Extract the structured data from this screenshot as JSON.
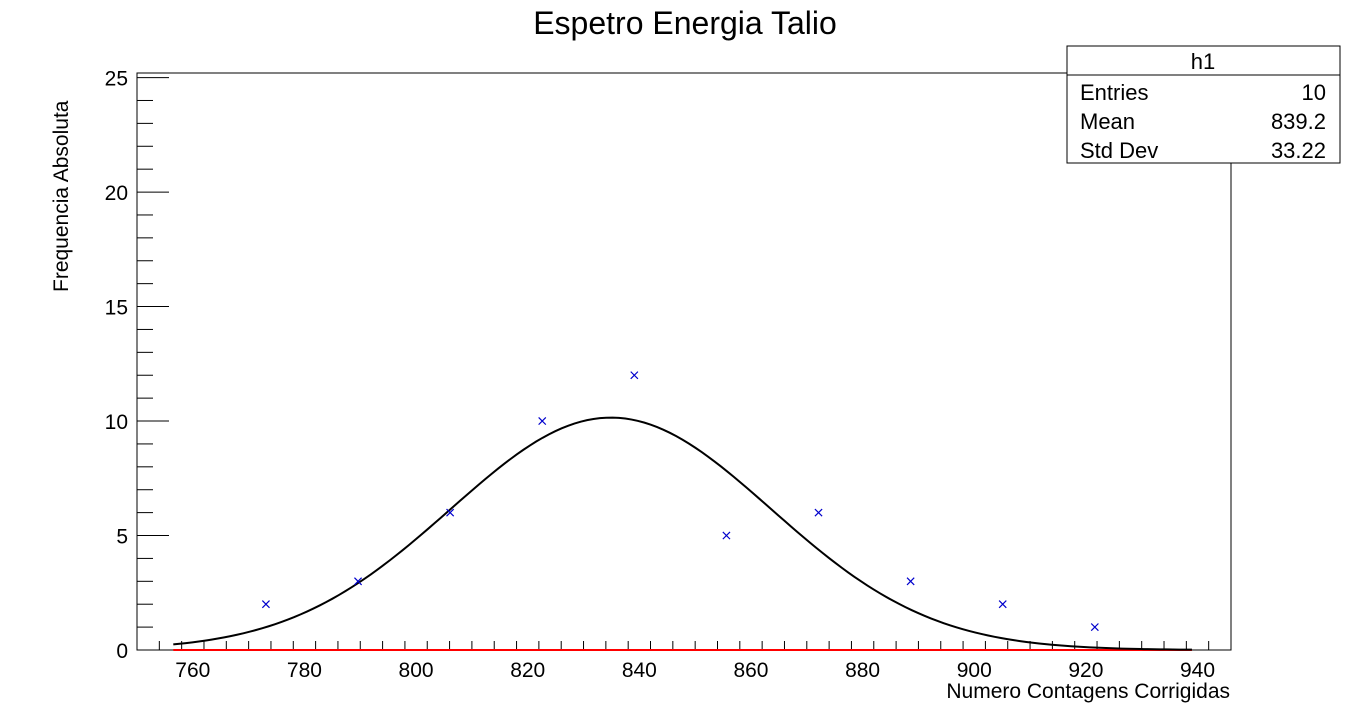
{
  "chart_data": {
    "type": "scatter",
    "title": "Espetro Energia Talio",
    "xlabel": "Numero Contagens Corrigidas",
    "ylabel": "Frequencia Absoluta",
    "xlim": [
      750,
      946
    ],
    "ylim": [
      0,
      25.2
    ],
    "x_ticks": [
      760,
      780,
      800,
      820,
      840,
      860,
      880,
      900,
      920,
      940
    ],
    "y_ticks": [
      0,
      5,
      10,
      15,
      20,
      25
    ],
    "grid": false,
    "series": [
      {
        "type": "scatter",
        "marker": "x",
        "color": "#0000cc",
        "x": [
          773.1,
          789.6,
          806.1,
          822.6,
          839.1,
          855.6,
          872.1,
          888.6,
          905.1,
          921.6
        ],
        "y": [
          2,
          3,
          6,
          10,
          12,
          5,
          6,
          3,
          2,
          1
        ]
      },
      {
        "type": "line",
        "color": "#000000",
        "fit": "gaus",
        "amplitude": 10.15,
        "mean": 834.9,
        "sigma": 28.7,
        "x_range": [
          756.5,
          939
        ]
      },
      {
        "type": "line",
        "color": "#ff0000",
        "x": [
          756.5,
          939
        ],
        "y": [
          0,
          0
        ]
      }
    ],
    "stats_box": {
      "title": "h1",
      "rows": [
        {
          "label": "Entries",
          "value": "10"
        },
        {
          "label": "Mean",
          "value": "839.2"
        },
        {
          "label": "Std Dev",
          "value": "33.22"
        }
      ]
    }
  }
}
